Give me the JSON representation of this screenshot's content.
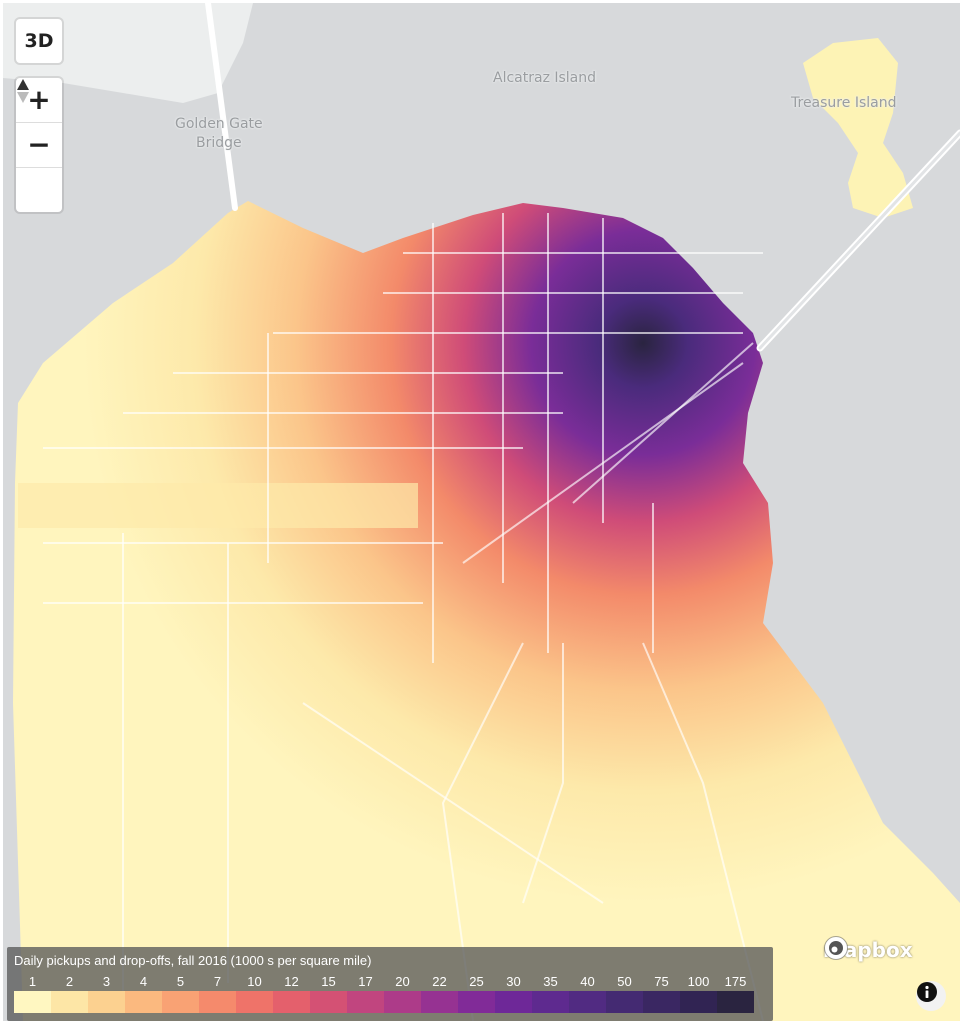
{
  "map": {
    "place_labels": [
      {
        "id": "alcatraz",
        "text": "Alcatraz Island"
      },
      {
        "id": "golden-gate",
        "text": "Golden Gate\nBridge"
      },
      {
        "id": "treasure-island",
        "text": "Treasure Island"
      }
    ],
    "colors": {
      "water": "#d7d9db",
      "land_low": "#fdf3b5",
      "land_mid": "#f08a66",
      "land_high": "#7a3aa0",
      "land_peak": "#2b1a4a",
      "roads": "#ffffff"
    }
  },
  "controls": {
    "btn_3d": "3D",
    "zoom_in": "+",
    "zoom_out": "−",
    "compass_icon": "compass-icon"
  },
  "attribution": {
    "logo_text": "mapbox",
    "info_icon": "info-icon"
  },
  "legend": {
    "title": "Daily pickups and drop-offs, fall 2016 (1000 s per square mile)",
    "bins": [
      {
        "label": "1",
        "color": "#fff7c1"
      },
      {
        "label": "2",
        "color": "#fde6a6"
      },
      {
        "label": "3",
        "color": "#fcd190"
      },
      {
        "label": "4",
        "color": "#fbb97f"
      },
      {
        "label": "5",
        "color": "#f9a274"
      },
      {
        "label": "7",
        "color": "#f58a6c"
      },
      {
        "label": "10",
        "color": "#ef7369"
      },
      {
        "label": "12",
        "color": "#e4606c"
      },
      {
        "label": "15",
        "color": "#d45174"
      },
      {
        "label": "17",
        "color": "#c1457f"
      },
      {
        "label": "20",
        "color": "#ad3b89"
      },
      {
        "label": "22",
        "color": "#963292"
      },
      {
        "label": "25",
        "color": "#812b98"
      },
      {
        "label": "30",
        "color": "#6e2898"
      },
      {
        "label": "35",
        "color": "#5e2a8f"
      },
      {
        "label": "40",
        "color": "#512b82"
      },
      {
        "label": "50",
        "color": "#442a72"
      },
      {
        "label": "75",
        "color": "#3a2762"
      },
      {
        "label": "100",
        "color": "#312453"
      },
      {
        "label": "175",
        "color": "#2a2440"
      }
    ]
  }
}
